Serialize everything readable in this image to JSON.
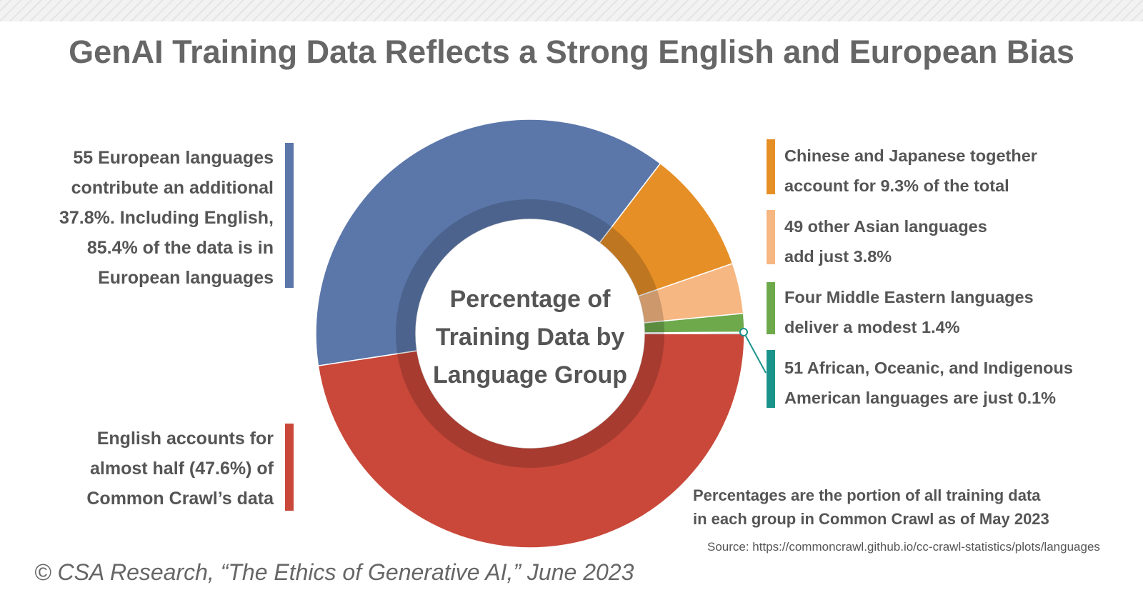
{
  "chart_data": {
    "type": "donut",
    "title": "GenAI Training Data Reflects a Strong English and European Bias",
    "center_label": [
      "Percentage of",
      "Training Data by",
      "Language Group"
    ],
    "values": [
      47.6,
      37.8,
      9.3,
      3.8,
      1.4,
      0.1
    ],
    "colors": [
      "#c9483a",
      "#5b77aa",
      "#e68f27",
      "#f6b782",
      "#6ea94c",
      "#1b948c"
    ],
    "annotations": [
      [
        "English accounts for",
        "almost half (47.6%) of",
        "Common Crawl’s data"
      ],
      [
        "55 European languages",
        "contribute an additional",
        "37.8%. Including English,",
        "85.4% of the data is in",
        "European languages"
      ],
      [
        "Chinese and Japanese together",
        "account for 9.3% of the total"
      ],
      [
        "49 other Asian languages",
        "add just 3.8%"
      ],
      [
        "Four Middle Eastern languages",
        "deliver a modest 1.4%"
      ],
      [
        "51 African, Oceanic, and Indigenous",
        "American languages are just 0.1%"
      ]
    ],
    "note": [
      "Percentages are the portion of all training data",
      "in each group in Common Crawl as of May 2023"
    ],
    "source": "Source: https://commoncrawl.github.io/cc-crawl-statistics/plots/languages",
    "copyright": "© CSA Research, “The Ethics of Generative AI,” June 2023"
  }
}
